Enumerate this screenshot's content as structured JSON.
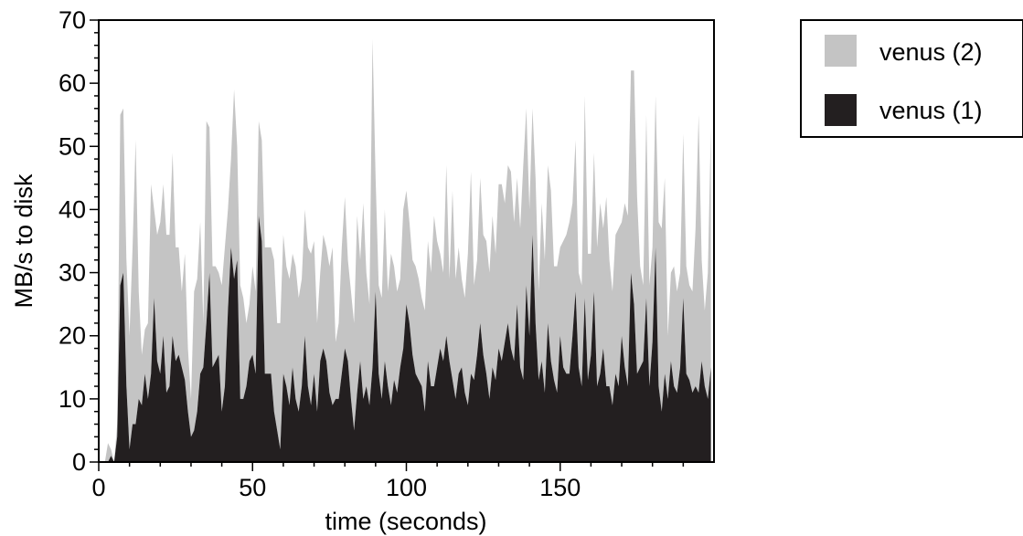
{
  "chart_data": {
    "type": "area",
    "stacked": true,
    "xlabel": "time (seconds)",
    "ylabel": "MB/s to disk",
    "xlim": [
      0,
      200
    ],
    "ylim": [
      0,
      70
    ],
    "x_ticks": [
      0,
      50,
      100,
      150
    ],
    "y_ticks": [
      0,
      10,
      20,
      30,
      40,
      50,
      60,
      70
    ],
    "grid": false,
    "legend_position": "top-right outside",
    "x_step": 1,
    "colors": {
      "venus (1)": "#231f20",
      "venus (2)": "#c4c4c4"
    },
    "series": [
      {
        "name": "venus (1)",
        "values": [
          0,
          0,
          0,
          0,
          1,
          0,
          4,
          28,
          30,
          12,
          2,
          6,
          6,
          10,
          9,
          14,
          10,
          14,
          26,
          16,
          14,
          20,
          11,
          12,
          20,
          16,
          17,
          15,
          13,
          8,
          4,
          5,
          8,
          14,
          15,
          22,
          30,
          15,
          16,
          17,
          8,
          12,
          24,
          34,
          29,
          32,
          10,
          10,
          12,
          16,
          17,
          14,
          39,
          35,
          14,
          14,
          14,
          8,
          5,
          2,
          14,
          12,
          9,
          15,
          10,
          8,
          12,
          20,
          12,
          9,
          14,
          8,
          16,
          18,
          16,
          11,
          9,
          10,
          10,
          14,
          18,
          16,
          10,
          5,
          11,
          16,
          10,
          12,
          9,
          15,
          27,
          14,
          10,
          16,
          12,
          9,
          13,
          11,
          15,
          18,
          25,
          22,
          17,
          14,
          13,
          12,
          8,
          16,
          12,
          12,
          15,
          18,
          16,
          20,
          16,
          13,
          10,
          14,
          15,
          11,
          9,
          14,
          13,
          17,
          22,
          17,
          14,
          10,
          15,
          13,
          18,
          16,
          19,
          22,
          18,
          16,
          25,
          15,
          13,
          28,
          20,
          36,
          22,
          13,
          16,
          11,
          22,
          16,
          13,
          11,
          20,
          15,
          14,
          14,
          20,
          27,
          15,
          12,
          26,
          13,
          17,
          27,
          12,
          14,
          18,
          12,
          12,
          9,
          14,
          12,
          20,
          15,
          12,
          30,
          25,
          14,
          15,
          16,
          26,
          12,
          19,
          34,
          12,
          8,
          14,
          10,
          16,
          12,
          11,
          15,
          26,
          14,
          13,
          11,
          12,
          11,
          16,
          12,
          10,
          15
        ]
      },
      {
        "name": "venus (2)",
        "values": [
          0,
          0,
          0,
          3,
          1,
          0,
          2,
          27,
          26,
          20,
          18,
          28,
          45,
          17,
          8,
          7,
          12,
          30,
          14,
          20,
          24,
          24,
          25,
          24,
          29,
          18,
          17,
          12,
          20,
          10,
          6,
          22,
          21,
          24,
          7,
          32,
          23,
          16,
          15,
          13,
          20,
          22,
          16,
          14,
          30,
          18,
          18,
          16,
          10,
          9,
          14,
          13,
          15,
          16,
          20,
          20,
          20,
          24,
          17,
          20,
          22,
          19,
          20,
          18,
          21,
          18,
          17,
          20,
          22,
          24,
          21,
          14,
          14,
          18,
          18,
          20,
          25,
          9,
          12,
          20,
          24,
          16,
          17,
          17,
          28,
          16,
          31,
          18,
          16,
          52,
          18,
          14,
          16,
          24,
          15,
          24,
          18,
          16,
          14,
          22,
          18,
          16,
          15,
          17,
          16,
          14,
          16,
          19,
          18,
          27,
          20,
          15,
          14,
          27,
          13,
          30,
          19,
          20,
          14,
          15,
          24,
          32,
          15,
          15,
          23,
          19,
          21,
          20,
          24,
          20,
          26,
          28,
          22,
          25,
          28,
          22,
          20,
          22,
          34,
          28,
          20,
          20,
          23,
          14,
          25,
          21,
          25,
          27,
          18,
          20,
          14,
          20,
          22,
          24,
          21,
          24,
          15,
          16,
          32,
          20,
          16,
          22,
          22,
          27,
          19,
          30,
          20,
          18,
          22,
          25,
          18,
          26,
          27,
          32,
          37,
          28,
          16,
          12,
          29,
          16,
          15,
          24,
          26,
          29,
          31,
          10,
          14,
          19,
          16,
          15,
          26,
          17,
          15,
          16,
          25,
          44,
          16,
          12,
          20,
          38
        ]
      }
    ]
  }
}
